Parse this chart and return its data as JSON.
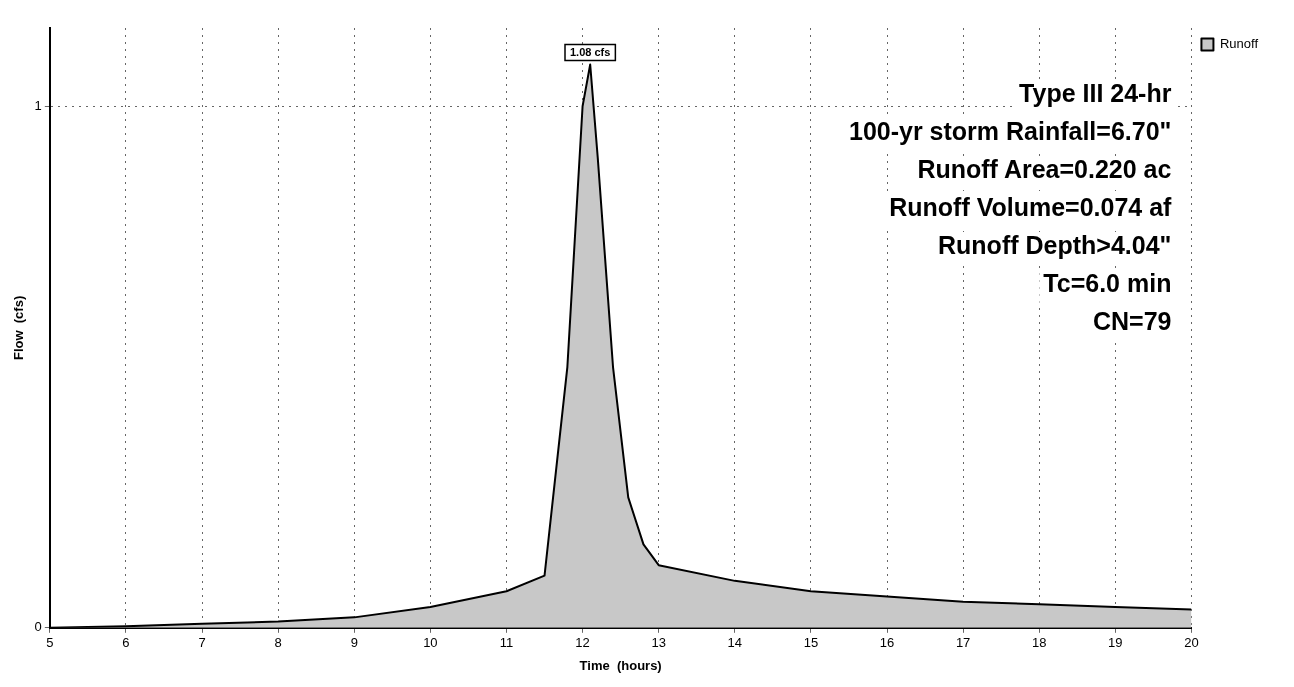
{
  "chart_data": {
    "type": "area",
    "xlabel": "Time  (hours)",
    "ylabel": "Flow  (cfs)",
    "x": [
      5,
      6,
      7,
      8,
      9,
      10,
      11,
      11.5,
      11.8,
      12.0,
      12.1,
      12.2,
      12.4,
      12.6,
      12.8,
      13,
      14,
      15,
      16,
      17,
      18,
      19,
      20
    ],
    "series": [
      {
        "name": "Runoff",
        "color": "#c8c8c8",
        "values": [
          0,
          0.003,
          0.008,
          0.012,
          0.02,
          0.04,
          0.07,
          0.1,
          0.5,
          1.0,
          1.08,
          0.9,
          0.5,
          0.25,
          0.16,
          0.12,
          0.09,
          0.07,
          0.06,
          0.05,
          0.045,
          0.04,
          0.035
        ]
      }
    ],
    "xlim": [
      5,
      20
    ],
    "xticks": [
      5,
      6,
      7,
      8,
      9,
      10,
      11,
      12,
      13,
      14,
      15,
      16,
      17,
      18,
      19,
      20
    ],
    "ylim": [
      0,
      1.15
    ],
    "yticks": [
      0,
      1
    ],
    "grid": true,
    "legend": "top right",
    "annotations": [
      {
        "text": "1.08 cfs",
        "x": 12.1,
        "y": 1.08
      },
      "Type III 24-hr",
      "100-yr storm Rainfall=6.70\"",
      "Runoff Area=0.220 ac",
      "Runoff Volume=0.074 af",
      "Runoff Depth>4.04\"",
      "Tc=6.0 min",
      "CN=79"
    ]
  }
}
